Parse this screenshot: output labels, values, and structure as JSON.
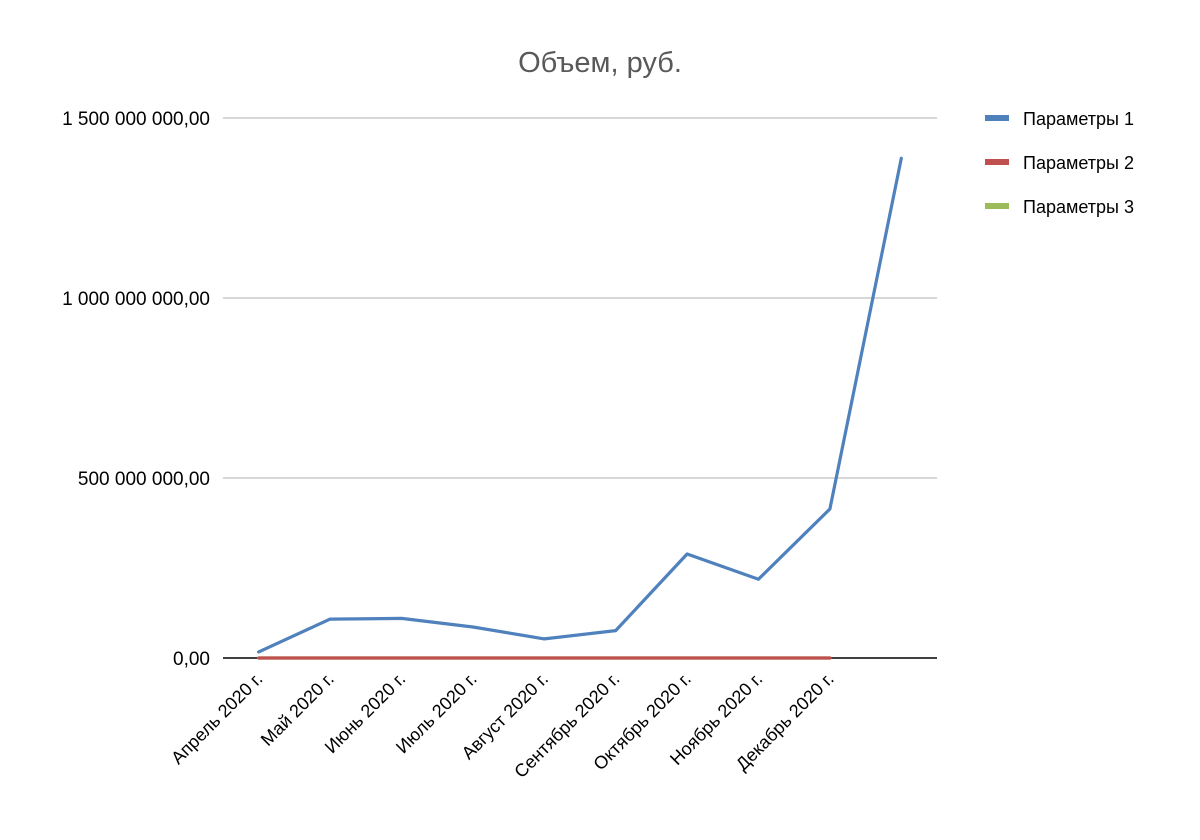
{
  "chart_data": {
    "type": "line",
    "title": "Объем, руб.",
    "xlabel": "",
    "ylabel": "",
    "ylim": [
      0,
      1500000000
    ],
    "yticks": [
      0,
      500000000,
      1000000000,
      1500000000
    ],
    "ytick_labels": [
      "0,00",
      "500 000 000,00",
      "1 000 000 000,00",
      "1 500 000 000,00"
    ],
    "categories": [
      "Апрель 2020 г.",
      "Май 2020 г.",
      "Июнь 2020 г.",
      "Июль 2020 г.",
      "Август 2020 г.",
      "Сентябрь 2020 г.",
      "Октябрь 2020 г.",
      "Ноябрь 2020 г.",
      "Декабрь 2020 г.",
      ""
    ],
    "grid": true,
    "legend_position": "right",
    "series": [
      {
        "name": "Параметры 1",
        "color": "#4f81bd",
        "values": [
          17000000,
          108000000,
          110000000,
          86000000,
          53000000,
          76000000,
          289000000,
          219000000,
          414000000,
          1388000000
        ]
      },
      {
        "name": "Параметры 2",
        "color": "#c0504d",
        "values": [
          0,
          0,
          0,
          0,
          0,
          0,
          0,
          0,
          0,
          null
        ]
      },
      {
        "name": "Параметры 3",
        "color": "#9bbb59",
        "values": [
          0,
          0,
          0,
          0,
          0,
          0,
          0,
          0,
          0,
          null
        ]
      }
    ]
  }
}
